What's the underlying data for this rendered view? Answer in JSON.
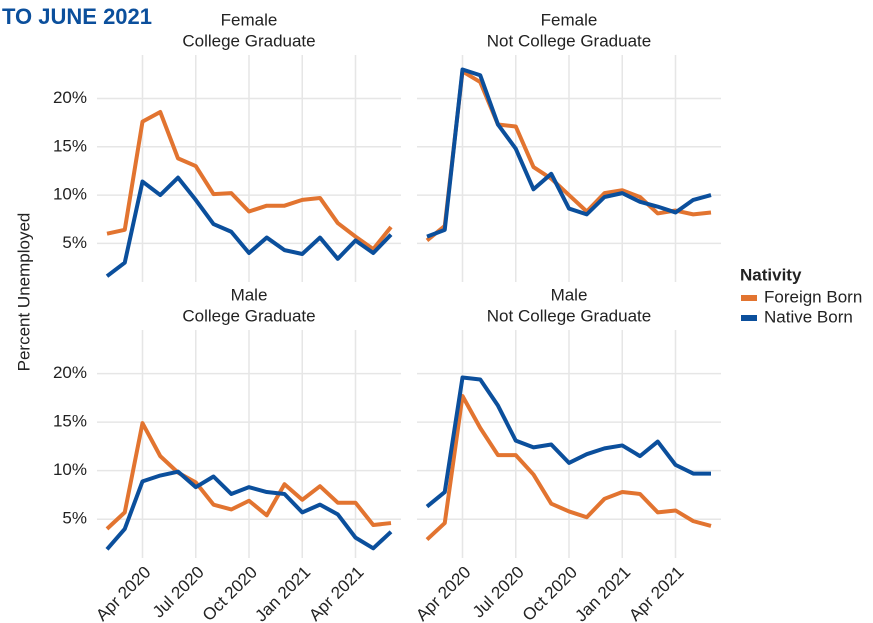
{
  "header": {
    "title": "TO JUNE 2021"
  },
  "y_label": "Percent Unemployed",
  "legend": {
    "title": "Nativity"
  },
  "chart_data": [
    {
      "type": "line",
      "title": [
        "Female",
        "College Graduate"
      ],
      "ylim": [
        1,
        24.5
      ],
      "yticks": [
        {
          "value": 5,
          "label": "5%"
        },
        {
          "value": 10,
          "label": "10%"
        },
        {
          "value": 15,
          "label": "15%"
        },
        {
          "value": 20,
          "label": "20%"
        }
      ],
      "grid": true,
      "series": [
        {
          "name": "Foreign Born",
          "color": "#e27430",
          "values": [
            6.0,
            6.4,
            17.6,
            18.6,
            13.8,
            13.0,
            10.1,
            10.2,
            8.3,
            8.9,
            8.9,
            9.5,
            9.7,
            7.1,
            5.7,
            4.4,
            6.7
          ]
        },
        {
          "name": "Native Born",
          "color": "#0b4f9c",
          "values": [
            1.6,
            3.0,
            11.4,
            10.0,
            11.8,
            9.5,
            7.0,
            6.2,
            4.0,
            5.6,
            4.3,
            3.9,
            5.6,
            3.4,
            5.3,
            4.0,
            5.9
          ]
        }
      ]
    },
    {
      "type": "line",
      "title": [
        "Female",
        "Not College Graduate"
      ],
      "ylim": [
        1,
        24.5
      ],
      "grid": true,
      "series": [
        {
          "name": "Foreign Born",
          "color": "#e27430",
          "values": [
            5.3,
            6.8,
            22.8,
            21.7,
            17.3,
            17.1,
            12.9,
            11.7,
            10.0,
            8.3,
            10.2,
            10.5,
            9.8,
            8.1,
            8.4,
            8.0,
            8.2
          ]
        },
        {
          "name": "Native Born",
          "color": "#0b4f9c",
          "values": [
            5.7,
            6.4,
            23.0,
            22.4,
            17.3,
            14.8,
            10.6,
            12.2,
            8.6,
            8.0,
            9.8,
            10.2,
            9.3,
            8.8,
            8.2,
            9.5,
            10.0
          ]
        }
      ]
    },
    {
      "type": "line",
      "title": [
        "Male",
        "College Graduate"
      ],
      "categories": [
        null,
        null,
        "Apr 2020",
        null,
        null,
        "Jul 2020",
        null,
        null,
        "Oct 2020",
        null,
        null,
        "Jan 2021",
        null,
        null,
        "Apr 2021",
        null,
        null
      ],
      "ylim": [
        1,
        24.5
      ],
      "yticks": [
        {
          "value": 5,
          "label": "5%"
        },
        {
          "value": 10,
          "label": "10%"
        },
        {
          "value": 15,
          "label": "15%"
        },
        {
          "value": 20,
          "label": "20%"
        }
      ],
      "grid": true,
      "series": [
        {
          "name": "Foreign Born",
          "color": "#e27430",
          "values": [
            4.0,
            5.7,
            14.9,
            11.5,
            9.8,
            8.8,
            6.5,
            6.0,
            6.9,
            5.4,
            8.6,
            7.0,
            8.4,
            6.7,
            6.7,
            4.4,
            4.6
          ]
        },
        {
          "name": "Native Born",
          "color": "#0b4f9c",
          "values": [
            1.9,
            4.0,
            8.9,
            9.5,
            9.9,
            8.3,
            9.4,
            7.6,
            8.3,
            7.8,
            7.6,
            5.7,
            6.5,
            5.5,
            3.1,
            2.0,
            3.7
          ]
        }
      ]
    },
    {
      "type": "line",
      "title": [
        "Male",
        "Not College Graduate"
      ],
      "categories": [
        null,
        null,
        "Apr 2020",
        null,
        null,
        "Jul 2020",
        null,
        null,
        "Oct 2020",
        null,
        null,
        "Jan 2021",
        null,
        null,
        "Apr 2021",
        null,
        null
      ],
      "ylim": [
        1,
        24.5
      ],
      "grid": true,
      "series": [
        {
          "name": "Foreign Born",
          "color": "#e27430",
          "values": [
            2.9,
            4.6,
            17.7,
            14.4,
            11.6,
            11.6,
            9.6,
            6.6,
            5.8,
            5.2,
            7.1,
            7.8,
            7.6,
            5.7,
            5.9,
            4.8,
            4.3
          ]
        },
        {
          "name": "Native Born",
          "color": "#0b4f9c",
          "values": [
            6.3,
            7.8,
            19.6,
            19.4,
            16.7,
            13.1,
            12.4,
            12.7,
            10.8,
            11.7,
            12.3,
            12.6,
            11.5,
            13.0,
            10.6,
            9.7,
            9.7
          ]
        }
      ]
    }
  ]
}
